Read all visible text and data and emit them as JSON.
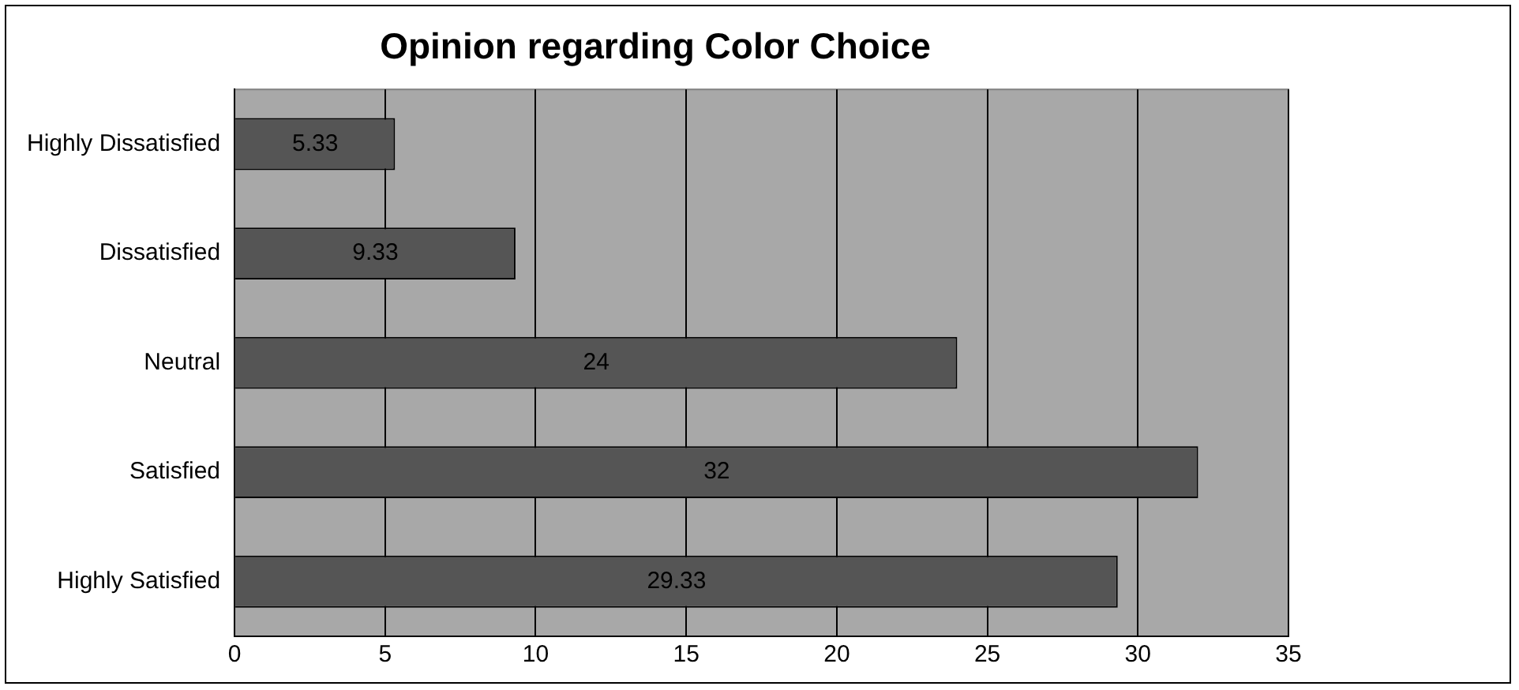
{
  "chart_data": {
    "type": "bar",
    "orientation": "horizontal",
    "title": "Opinion regarding Color Choice",
    "categories": [
      "Highly Dissatisfied",
      "Dissatisfied",
      "Neutral",
      "Satisfied",
      "Highly Satisfied"
    ],
    "values": [
      5.33,
      9.33,
      24,
      32,
      29.33
    ],
    "color": "#555555",
    "value_labels": [
      "5.33",
      "9.33",
      "24",
      "32",
      "29.33"
    ],
    "xlim": [
      0,
      35
    ],
    "xticks": [
      0,
      5,
      10,
      15,
      20,
      25,
      30,
      35
    ],
    "grid": "x",
    "legend": false
  }
}
